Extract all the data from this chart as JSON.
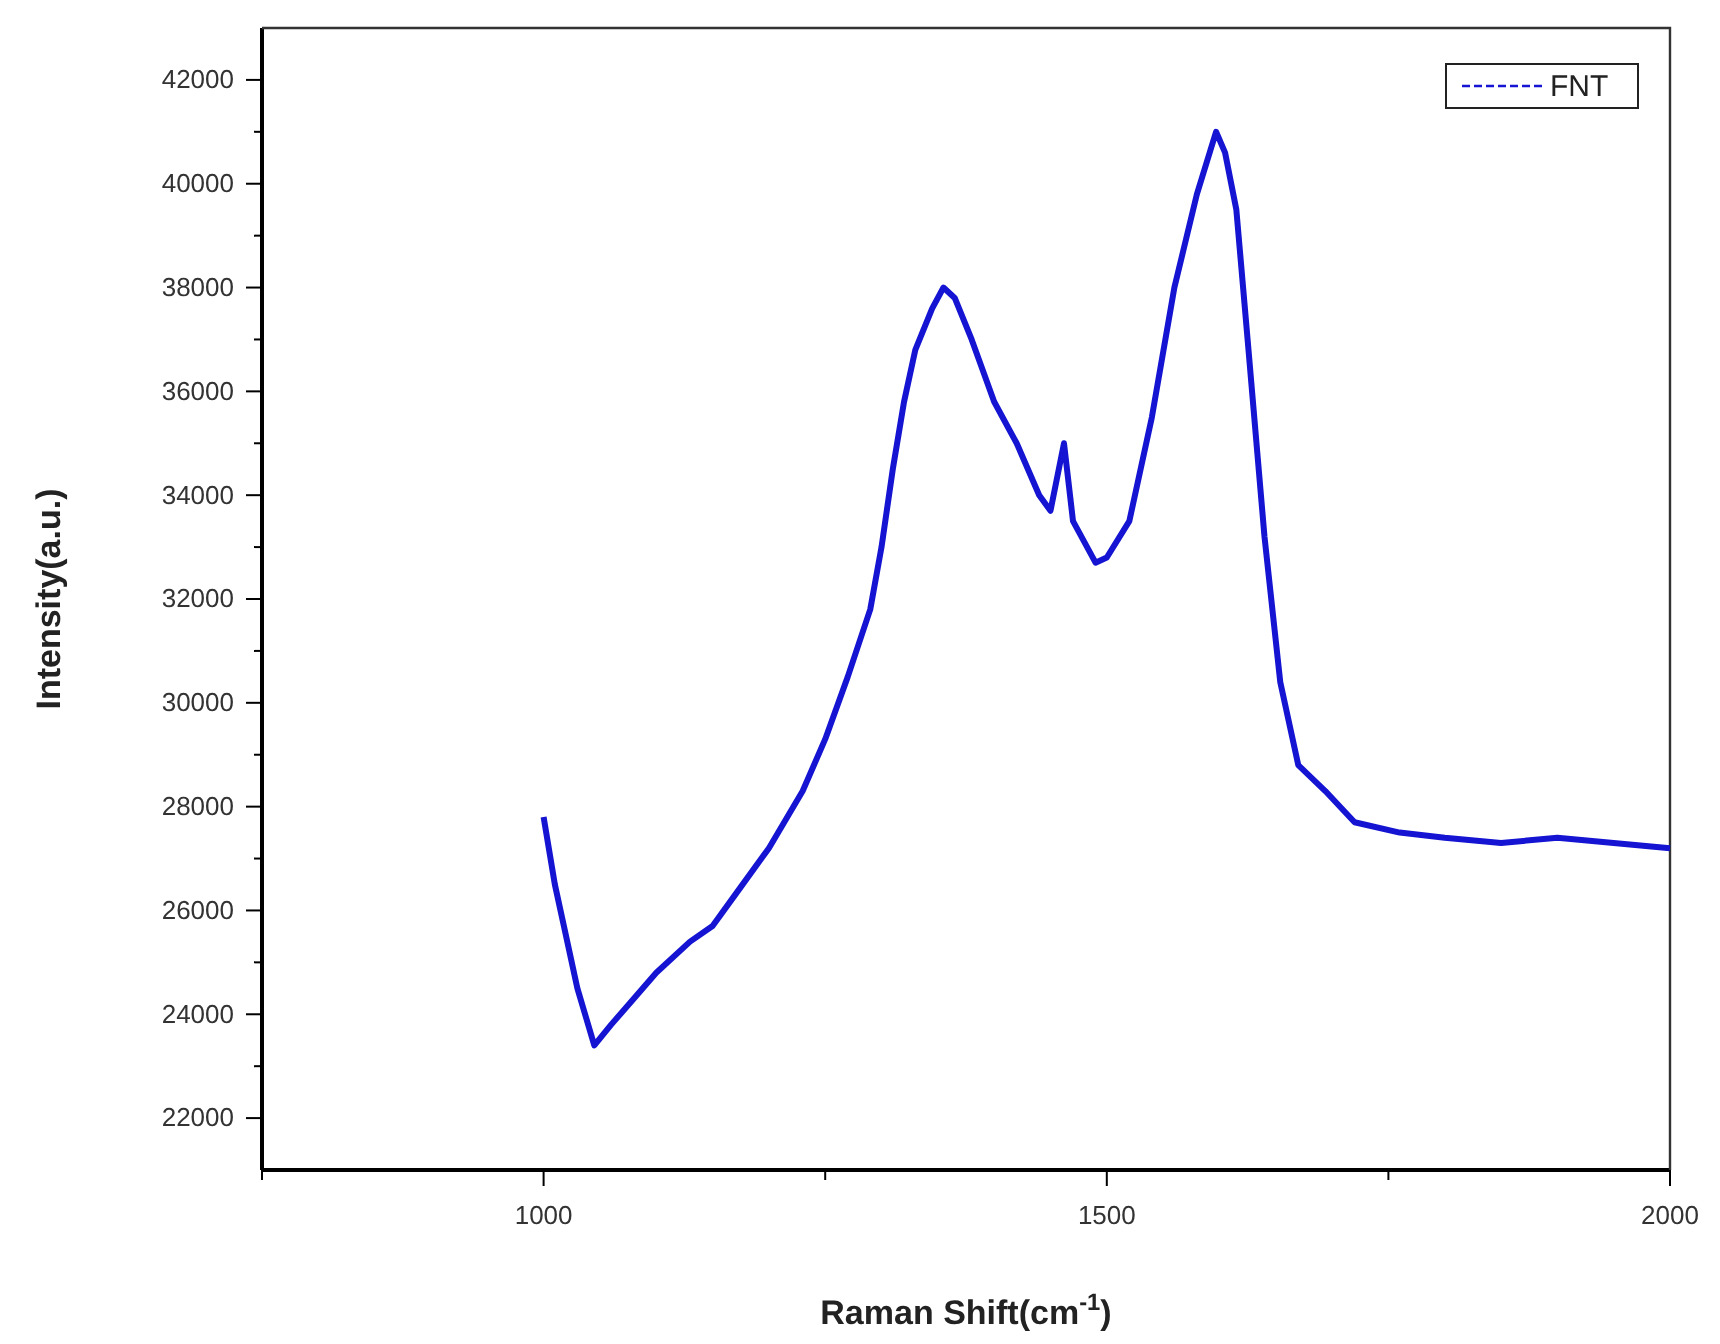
{
  "chart_data": {
    "type": "line",
    "xlabel": "Raman Shift(cm$^{-1}$)",
    "ylabel": "Intensity(a.u.)",
    "xlim": [
      750,
      2000
    ],
    "xticks": [
      {
        "value": 750,
        "label": null
      },
      1000,
      {
        "value": 1250,
        "label": null
      },
      1500,
      {
        "value": 1750,
        "label": null
      },
      2000
    ],
    "ylim": [
      21000,
      43000
    ],
    "yticks": [
      22000,
      {
        "value": 23000,
        "label": null
      },
      24000,
      {
        "value": 25000,
        "label": null
      },
      26000,
      {
        "value": 27000,
        "label": null
      },
      28000,
      {
        "value": 29000,
        "label": null
      },
      30000,
      {
        "value": 31000,
        "label": null
      },
      32000,
      {
        "value": 33000,
        "label": null
      },
      34000,
      {
        "value": 35000,
        "label": null
      },
      36000,
      {
        "value": 37000,
        "label": null
      },
      38000,
      {
        "value": 39000,
        "label": null
      },
      40000,
      {
        "value": 41000,
        "label": null
      },
      42000
    ],
    "grid": false,
    "legend": "top right",
    "line_style": "solid",
    "marker": "none",
    "series": [
      {
        "name": "FNT",
        "color": "#1414d2",
        "x": [
          1000,
          1010,
          1020,
          1030,
          1045,
          1060,
          1080,
          1100,
          1130,
          1150,
          1170,
          1200,
          1230,
          1250,
          1270,
          1290,
          1300,
          1310,
          1320,
          1330,
          1345,
          1355,
          1365,
          1380,
          1400,
          1420,
          1440,
          1450,
          1462,
          1470,
          1490,
          1500,
          1520,
          1540,
          1560,
          1580,
          1597,
          1605,
          1615,
          1625,
          1640,
          1654,
          1670,
          1694,
          1720,
          1760,
          1800,
          1850,
          1900,
          1950,
          2000
        ],
        "values": [
          27800,
          26500,
          25500,
          24500,
          23400,
          23800,
          24300,
          24800,
          25400,
          25700,
          26300,
          27200,
          28300,
          29300,
          30500,
          31800,
          33000,
          34500,
          35800,
          36800,
          37600,
          38000,
          37800,
          37000,
          35800,
          35000,
          34000,
          33700,
          35000,
          33500,
          32700,
          32800,
          33500,
          35500,
          38000,
          39800,
          41000,
          40600,
          39500,
          37000,
          33200,
          30400,
          28800,
          28300,
          27700,
          27500,
          27400,
          27300,
          27400,
          27300,
          27200
        ]
      }
    ]
  }
}
